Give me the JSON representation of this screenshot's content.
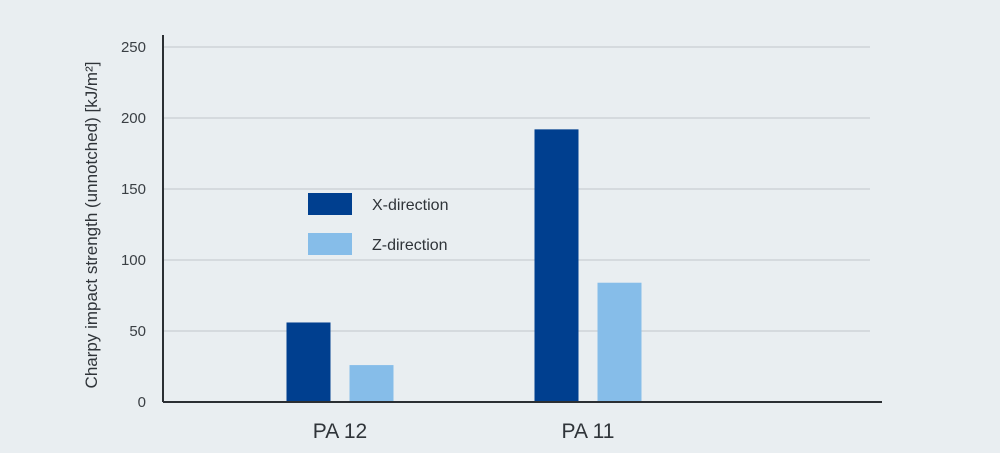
{
  "chart_data": {
    "type": "bar",
    "categories": [
      "PA 12",
      "PA 11"
    ],
    "series": [
      {
        "name": "X-direction",
        "color": "#003f8f",
        "values": [
          56,
          192
        ]
      },
      {
        "name": "Z-direction",
        "color": "#86bde9",
        "values": [
          26,
          84
        ]
      }
    ],
    "ylabel": "Charpy impact strength (unnotched) [kJ/m²]",
    "yticks": [
      0,
      50,
      100,
      150,
      200,
      250
    ],
    "ylim": [
      0,
      250
    ],
    "grid": true,
    "legend_position": "center-left"
  }
}
